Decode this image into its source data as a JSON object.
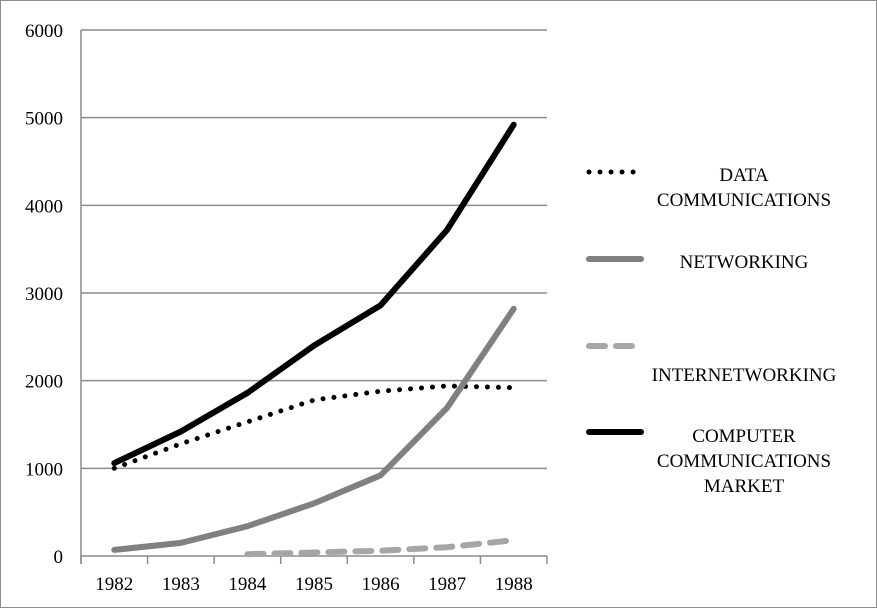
{
  "chart_data": {
    "type": "line",
    "title": "",
    "xlabel": "",
    "ylabel": "",
    "categories": [
      "1982",
      "1983",
      "1984",
      "1985",
      "1986",
      "1987",
      "1988"
    ],
    "ylim": [
      0,
      6000
    ],
    "yticks": [
      "0",
      "1000",
      "2000",
      "3000",
      "4000",
      "5000",
      "6000"
    ],
    "grid": "horizontal",
    "legend_position": "right",
    "series": [
      {
        "name": "DATA COMMUNICATIONS",
        "name_lines": [
          "DATA",
          "COMMUNICATIONS"
        ],
        "values": [
          1000,
          1280,
          1530,
          1780,
          1880,
          1940,
          1920
        ],
        "color": "#000000",
        "style": "dotted"
      },
      {
        "name": "NETWORKING",
        "name_lines": [
          "NETWORKING"
        ],
        "values": [
          70,
          150,
          340,
          600,
          920,
          1690,
          2820
        ],
        "color": "#808080",
        "style": "solid"
      },
      {
        "name": "INTERNETWORKING",
        "name_lines": [
          "INTERNETWORKING"
        ],
        "values": [
          null,
          null,
          20,
          40,
          60,
          100,
          180
        ],
        "color": "#a6a6a6",
        "style": "dashed"
      },
      {
        "name": "COMPUTER COMMUNICATIONS MARKET",
        "name_lines": [
          "COMPUTER",
          "COMMUNICATIONS",
          "MARKET"
        ],
        "values": [
          1060,
          1420,
          1860,
          2400,
          2860,
          3720,
          4920
        ],
        "color": "#000000",
        "style": "solid"
      }
    ]
  }
}
